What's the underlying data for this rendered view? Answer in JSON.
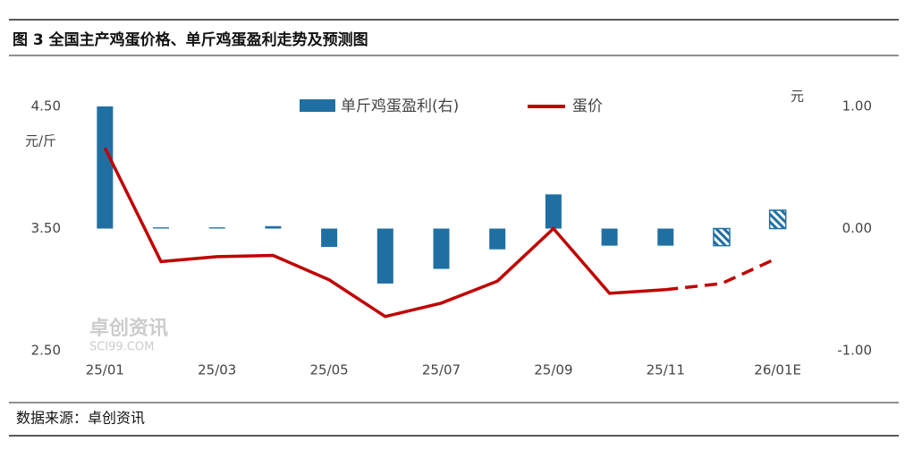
{
  "chart_data": {
    "type": "bar-line",
    "title": "图 3 全国主产鸡蛋价格、单斤鸡蛋盈利走势及预测图",
    "source": "数据来源：卓创资讯",
    "watermark": "卓创资讯",
    "watermark_sub": "SCI99.COM",
    "y_unit": "元/斤",
    "y2_unit": "元",
    "categories": [
      "25/01",
      null,
      "25/03",
      null,
      "25/05",
      null,
      "25/07",
      null,
      "25/09",
      null,
      "25/11",
      null,
      "26/01E"
    ],
    "series": [
      {
        "name": "单斤鸡蛋盈利(右)",
        "type": "bar",
        "axis": "y2",
        "color": "#1f6fa3",
        "values": [
          1.0,
          0.01,
          0.01,
          0.02,
          -0.15,
          -0.45,
          -0.33,
          -0.17,
          0.28,
          -0.14,
          -0.14,
          -0.14,
          0.15
        ]
      },
      {
        "name": "蛋价",
        "type": "line",
        "color": "#c00000",
        "values": [
          4.16,
          3.23,
          3.27,
          3.28,
          3.08,
          2.78,
          2.89,
          3.07,
          3.5,
          2.97,
          3.0,
          3.05,
          3.26
        ]
      }
    ],
    "forecast_from": 11,
    "ylim": [
      2.5,
      4.5
    ],
    "yticks": [
      {
        "value": 2.5,
        "label": "2.50"
      },
      {
        "value": 3.5,
        "label": "3.50"
      },
      {
        "value": 4.5,
        "label": "4.50"
      }
    ],
    "y2lim": [
      -1,
      1
    ],
    "y2ticks": [
      {
        "value": -1,
        "label": "-1.00"
      },
      {
        "value": 0,
        "label": "0.00"
      },
      {
        "value": 1,
        "label": "1.00"
      }
    ],
    "grid": false
  }
}
